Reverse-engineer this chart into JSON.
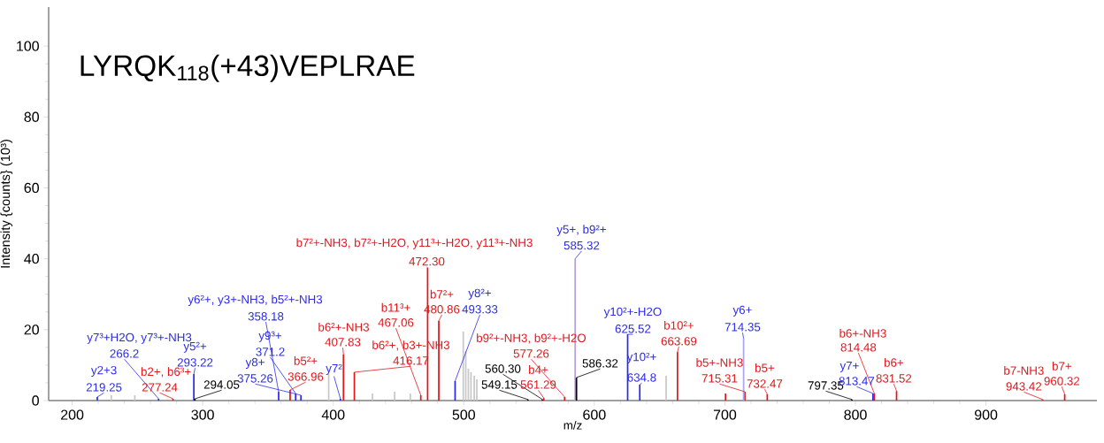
{
  "chart_data": {
    "type": "bar",
    "title": "LYRQK$_{118}$(+43)VEPLRAE",
    "xlabel": "m/z",
    "ylabel": "Intensity {counts} (10³)",
    "xlim": [
      182,
      985
    ],
    "ylim": [
      0,
      111
    ],
    "xticks": [
      200,
      300,
      400,
      500,
      600,
      700,
      800,
      900
    ],
    "yticks": [
      0,
      20,
      40,
      60,
      80,
      100
    ],
    "series": [
      {
        "color": "#e0181c",
        "x": [
          277.24,
          366.96,
          407.83,
          416.17,
          467.06,
          472.3,
          480.86,
          561.29,
          577.26,
          663.69,
          700.5,
          715.31,
          732.47,
          814.48,
          831.52,
          943.42,
          960.32
        ],
        "values": [
          0.5,
          3,
          13,
          8,
          1.5,
          37.5,
          22.5,
          0.7,
          1,
          13.7,
          2,
          2.5,
          1.8,
          2,
          2.7,
          0.3,
          1.8
        ]
      },
      {
        "color": "#2b2bee",
        "x": [
          219.25,
          266.2,
          293.22,
          358.18,
          371.2,
          375.26,
          405.5,
          493.33,
          585.32,
          625.52,
          634.8,
          714.35,
          813.47
        ],
        "values": [
          1,
          0.5,
          7.5,
          2.5,
          2,
          1.5,
          0.5,
          5.5,
          40,
          18.7,
          4.5,
          17.5,
          2
        ],
        "colors": [
          "#2b2bee",
          "#2b2bee",
          "#2b2bee",
          "#2b2bee",
          "#2b2bee",
          "#2b2bee",
          "#2b2bee",
          "#2b2bee",
          "#b7a0d8",
          "#2b2bee",
          "#2b2bee",
          "#a8a8f0",
          "#2b2bee"
        ]
      },
      {
        "color": "#000000",
        "x": [
          294.05,
          549.15,
          560.3,
          586.32,
          797.35
        ],
        "values": [
          0.5,
          0.3,
          0.3,
          6.5,
          0.3
        ]
      },
      {
        "color": "#c8c8c8",
        "x": [
          230,
          248,
          396.5,
          430,
          447,
          459,
          499.6,
          501.5,
          503.5,
          505.5,
          508,
          510,
          655
        ],
        "values": [
          1.5,
          1.5,
          7.5,
          2,
          2.5,
          2,
          19.5,
          14,
          9,
          8,
          7,
          6,
          7
        ]
      }
    ],
    "annotations": [
      "y2+3",
      {
        "text": "219.25",
        "x": 219.25,
        "y": 1
      },
      "y7³+H2O, y7³+-NH3",
      {
        "text": "266.2",
        "x": 266.2,
        "y": 0.5
      },
      "y5²+",
      {
        "text": "293.22",
        "x": 293.22,
        "y": 7.5
      },
      "b2+, b6³+",
      {
        "text": "277.24",
        "x": 277.24,
        "y": 0.5
      },
      {
        "text": "294.05",
        "x": 294.05,
        "y": 0.5
      },
      "y6²+, y3+-NH3, b5²+-NH3",
      {
        "text": "358.18",
        "x": 358.18,
        "y": 2.5
      },
      "y9³+",
      {
        "text": "371.2",
        "x": 371.2,
        "y": 2
      },
      "y8+",
      {
        "text": "375.26",
        "x": 375.26,
        "y": 1.5
      },
      "b5²+",
      {
        "text": "366.96",
        "x": 366.96,
        "y": 3
      },
      {
        "text": "y7²",
        "x": 405.5,
        "y": 0.5
      },
      "b6²+-NH3",
      {
        "text": "407.83",
        "x": 407.83,
        "y": 13
      },
      "b6²+, b3+-NH3",
      {
        "text": "416.17",
        "x": 416.17,
        "y": 8
      },
      "b11³+",
      {
        "text": "467.06",
        "x": 467.06,
        "y": 1.5
      },
      "b7²+-NH3, b7²+-H2O, y11³+-H2O, y11³+-NH3",
      {
        "text": "472.30",
        "x": 472.3,
        "y": 37.5
      },
      "b7²+",
      {
        "text": "480.86",
        "x": 480.86,
        "y": 22.5
      },
      "y8²+",
      {
        "text": "493.33",
        "x": 493.33,
        "y": 5.5
      },
      {
        "text": "560.30",
        "x": 560.3,
        "y": 0.3
      },
      {
        "text": "549.15",
        "x": 549.15,
        "y": 0.3
      },
      "b9²+-NH3, b9²+-H2O",
      {
        "text": "577.26",
        "x": 577.26,
        "y": 1
      },
      "b4+",
      {
        "text": "561.29",
        "x": 561.29,
        "y": 0.7
      },
      "y5+, b9²+",
      {
        "text": "585.32",
        "x": 585.32,
        "y": 40
      },
      {
        "text": "586.32",
        "x": 586.32,
        "y": 6.5
      },
      "y10²+-H2O",
      {
        "text": "625.52",
        "x": 625.52,
        "y": 18.7
      },
      "y10²+",
      {
        "text": "634.8",
        "x": 634.8,
        "y": 4.5
      },
      "b10²+",
      {
        "text": "663.69",
        "x": 663.69,
        "y": 13.7
      },
      "y6+",
      {
        "text": "714.35",
        "x": 714.35,
        "y": 17.5
      },
      "b5+-NH3",
      {
        "text": "715.31",
        "x": 715.31,
        "y": 2.5
      },
      "b5+",
      {
        "text": "732.47",
        "x": 732.47,
        "y": 1.8
      },
      {
        "text": "797.35",
        "x": 797.35,
        "y": 0.3
      },
      "y7+",
      {
        "text": "813.47",
        "x": 813.47,
        "y": 2
      },
      "b6+-NH3",
      {
        "text": "814.48",
        "x": 814.48,
        "y": 2
      },
      "b6+",
      {
        "text": "831.52",
        "x": 831.52,
        "y": 2.7
      },
      "b7-NH3",
      {
        "text": "943.42",
        "x": 943.42,
        "y": 0.3
      },
      "b7+",
      {
        "text": "960.32",
        "x": 960.32,
        "y": 1.8
      }
    ]
  }
}
